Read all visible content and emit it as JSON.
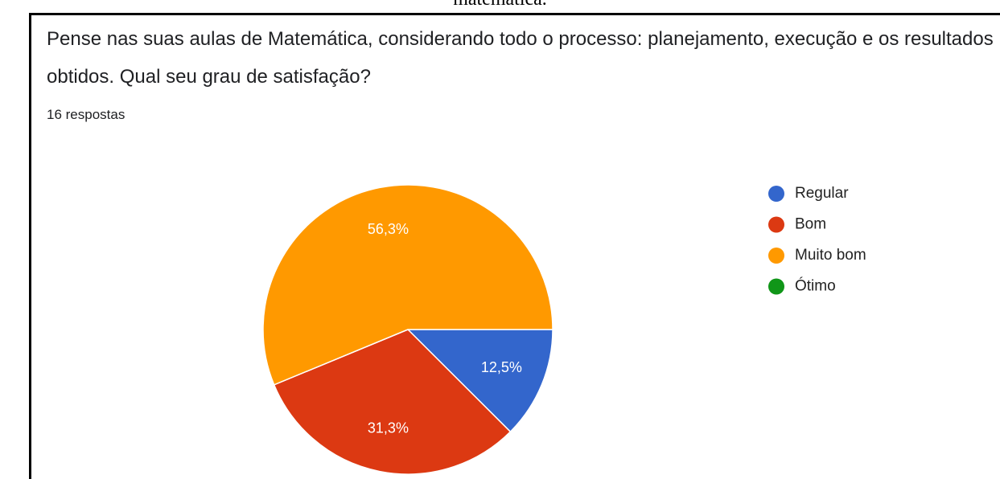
{
  "caption": "matemática.",
  "chart_data": {
    "type": "pie",
    "title": "Pense nas suas aulas de Matemática, considerando todo o processo: planejamento, execução e os resultados obtidos. Qual seu grau de satisfação?",
    "subtitle": "16 respostas",
    "categories": [
      "Regular",
      "Bom",
      "Muito bom",
      "Ótimo"
    ],
    "values": [
      12.5,
      31.3,
      56.3,
      0
    ],
    "value_labels": [
      "12,5%",
      "31,3%",
      "56,3%",
      null
    ],
    "colors": [
      "#3366cc",
      "#dc3912",
      "#ff9900",
      "#109618"
    ],
    "legend": "right"
  }
}
